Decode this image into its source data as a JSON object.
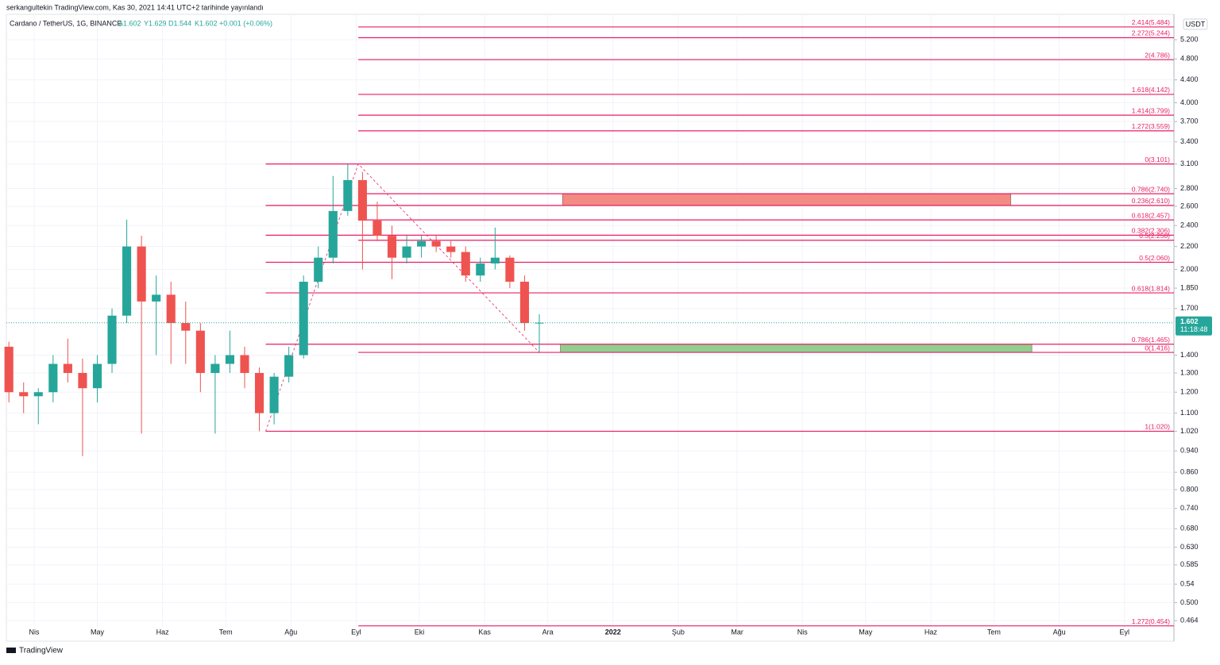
{
  "header": {
    "published": "serkangultekin TradingView.com, Kas 30, 2021 14:41 UTC+2 tarihinde yayınlandı",
    "symbol": "Cardano / TetherUS, 1G, BINANCE",
    "open": "A1.602",
    "high": "Y1.629",
    "low": "D1.544",
    "close": "K1.602",
    "change": "+0.001 (+0.06%)"
  },
  "footer": {
    "brand": "TradingView"
  },
  "chart_data": {
    "type": "candlestick",
    "log_scale": true,
    "currency": "USDT",
    "up_color": "#26a69a",
    "down_color": "#ef5350",
    "level_color": "#e91e63",
    "xlim": [
      -13.2,
      541.5
    ],
    "ylim": [
      0.452,
      5.78
    ],
    "xticks": [
      {
        "value": 0,
        "label": "Nis"
      },
      {
        "value": 30,
        "label": "May"
      },
      {
        "value": 61,
        "label": "Haz"
      },
      {
        "value": 91,
        "label": "Tem"
      },
      {
        "value": 122,
        "label": "Ağu"
      },
      {
        "value": 153,
        "label": "Eyl"
      },
      {
        "value": 183,
        "label": "Eki"
      },
      {
        "value": 214,
        "label": "Kas"
      },
      {
        "value": 244,
        "label": "Ara"
      },
      {
        "value": 275,
        "label": "2022"
      },
      {
        "value": 306,
        "label": "Şub"
      },
      {
        "value": 334,
        "label": "Mar"
      },
      {
        "value": 365,
        "label": "Nis"
      },
      {
        "value": 395,
        "label": "May"
      },
      {
        "value": 426,
        "label": "Haz"
      },
      {
        "value": 456,
        "label": "Tem"
      },
      {
        "value": 487,
        "label": "Ağu"
      },
      {
        "value": 518,
        "label": "Eyl"
      }
    ],
    "yticks": [
      {
        "value": 5.2,
        "label": "5.200"
      },
      {
        "value": 4.8,
        "label": "4.800"
      },
      {
        "value": 4.4,
        "label": "4.400"
      },
      {
        "value": 4.0,
        "label": "4.000"
      },
      {
        "value": 3.7,
        "label": "3.700"
      },
      {
        "value": 3.4,
        "label": "3.400"
      },
      {
        "value": 3.1,
        "label": "3.100"
      },
      {
        "value": 2.8,
        "label": "2.800"
      },
      {
        "value": 2.6,
        "label": "2.600"
      },
      {
        "value": 2.4,
        "label": "2.400"
      },
      {
        "value": 2.2,
        "label": "2.200"
      },
      {
        "value": 2.0,
        "label": "2.000"
      },
      {
        "value": 1.85,
        "label": "1.850"
      },
      {
        "value": 1.7,
        "label": "1.700"
      },
      {
        "value": 1.4,
        "label": "1.400"
      },
      {
        "value": 1.3,
        "label": "1.300"
      },
      {
        "value": 1.2,
        "label": "1.200"
      },
      {
        "value": 1.1,
        "label": "1.100"
      },
      {
        "value": 1.02,
        "label": "1.020"
      },
      {
        "value": 0.94,
        "label": "0.940"
      },
      {
        "value": 0.86,
        "label": "0.860"
      },
      {
        "value": 0.8,
        "label": "0.800"
      },
      {
        "value": 0.74,
        "label": "0.740"
      },
      {
        "value": 0.68,
        "label": "0.680"
      },
      {
        "value": 0.63,
        "label": "0.630"
      },
      0.585,
      0.54,
      {
        "value": 0.5,
        "label": "0.500"
      },
      0.464
    ],
    "last_price": 1.602,
    "countdown": "11:18:48",
    "candles": [
      {
        "x": -12,
        "open": 1.45,
        "high": 1.48,
        "low": 1.15,
        "close": 1.2
      },
      {
        "x": -5,
        "open": 1.2,
        "high": 1.25,
        "low": 1.1,
        "close": 1.18
      },
      {
        "x": 2,
        "open": 1.18,
        "high": 1.22,
        "low": 1.05,
        "close": 1.2
      },
      {
        "x": 9,
        "open": 1.2,
        "high": 1.4,
        "low": 1.15,
        "close": 1.35
      },
      {
        "x": 16,
        "open": 1.35,
        "high": 1.5,
        "low": 1.25,
        "close": 1.3
      },
      {
        "x": 23,
        "open": 1.3,
        "high": 1.38,
        "low": 0.92,
        "close": 1.22
      },
      {
        "x": 30,
        "open": 1.22,
        "high": 1.4,
        "low": 1.15,
        "close": 1.35
      },
      {
        "x": 37,
        "open": 1.35,
        "high": 1.7,
        "low": 1.3,
        "close": 1.65
      },
      {
        "x": 44,
        "open": 1.65,
        "high": 2.46,
        "low": 1.6,
        "close": 2.2
      },
      {
        "x": 51,
        "open": 2.2,
        "high": 2.3,
        "low": 1.01,
        "close": 1.75
      },
      {
        "x": 58,
        "open": 1.75,
        "high": 1.95,
        "low": 1.4,
        "close": 1.8
      },
      {
        "x": 65,
        "open": 1.8,
        "high": 1.9,
        "low": 1.35,
        "close": 1.6
      },
      {
        "x": 72,
        "open": 1.6,
        "high": 1.75,
        "low": 1.35,
        "close": 1.55
      },
      {
        "x": 79,
        "open": 1.55,
        "high": 1.6,
        "low": 1.2,
        "close": 1.3
      },
      {
        "x": 86,
        "open": 1.3,
        "high": 1.4,
        "low": 1.01,
        "close": 1.35
      },
      {
        "x": 93,
        "open": 1.35,
        "high": 1.55,
        "low": 1.3,
        "close": 1.4
      },
      {
        "x": 100,
        "open": 1.4,
        "high": 1.45,
        "low": 1.22,
        "close": 1.3
      },
      {
        "x": 107,
        "open": 1.3,
        "high": 1.33,
        "low": 1.02,
        "close": 1.1
      },
      {
        "x": 114,
        "open": 1.1,
        "high": 1.3,
        "low": 1.05,
        "close": 1.28
      },
      {
        "x": 121,
        "open": 1.28,
        "high": 1.45,
        "low": 1.25,
        "close": 1.4
      },
      {
        "x": 128,
        "open": 1.4,
        "high": 1.95,
        "low": 1.38,
        "close": 1.9
      },
      {
        "x": 135,
        "open": 1.9,
        "high": 2.2,
        "low": 1.85,
        "close": 2.1
      },
      {
        "x": 142,
        "open": 2.1,
        "high": 2.95,
        "low": 2.05,
        "close": 2.55
      },
      {
        "x": 149,
        "open": 2.55,
        "high": 3.1,
        "low": 2.5,
        "close": 2.9
      },
      {
        "x": 156,
        "open": 2.9,
        "high": 3.0,
        "low": 2.0,
        "close": 2.45
      },
      {
        "x": 163,
        "open": 2.45,
        "high": 2.65,
        "low": 2.25,
        "close": 2.3
      },
      {
        "x": 170,
        "open": 2.3,
        "high": 2.4,
        "low": 1.92,
        "close": 2.1
      },
      {
        "x": 177,
        "open": 2.1,
        "high": 2.3,
        "low": 2.05,
        "close": 2.2
      },
      {
        "x": 184,
        "open": 2.2,
        "high": 2.3,
        "low": 2.1,
        "close": 2.25
      },
      {
        "x": 191,
        "open": 2.25,
        "high": 2.3,
        "low": 2.15,
        "close": 2.2
      },
      {
        "x": 198,
        "open": 2.2,
        "high": 2.25,
        "low": 2.1,
        "close": 2.15
      },
      {
        "x": 205,
        "open": 2.15,
        "high": 2.2,
        "low": 1.9,
        "close": 1.95
      },
      {
        "x": 212,
        "open": 1.95,
        "high": 2.1,
        "low": 1.9,
        "close": 2.05
      },
      {
        "x": 219,
        "open": 2.05,
        "high": 2.38,
        "low": 2.0,
        "close": 2.1
      },
      {
        "x": 226,
        "open": 2.1,
        "high": 2.12,
        "low": 1.85,
        "close": 1.9
      },
      {
        "x": 233,
        "open": 1.9,
        "high": 1.95,
        "low": 1.55,
        "close": 1.6
      },
      {
        "x": 240,
        "open": 1.6,
        "high": 1.66,
        "low": 1.42,
        "close": 1.602
      }
    ],
    "levels": [
      {
        "start": 154,
        "value": 5.484,
        "label": "2.414(5.484)"
      },
      {
        "start": 154,
        "value": 5.244,
        "label": "2.272(5.244)"
      },
      {
        "start": 154,
        "value": 4.786,
        "label": "2(4.786)"
      },
      {
        "start": 154,
        "value": 4.142,
        "label": "1.618(4.142)"
      },
      {
        "start": 154,
        "value": 3.799,
        "label": "1.414(3.799)"
      },
      {
        "start": 154,
        "value": 3.559,
        "label": "1.272(3.559)"
      },
      {
        "start": 110,
        "value": 3.101,
        "label": "0(3.101)"
      },
      {
        "start": 154,
        "value": 2.74,
        "label": "0.786(2.740)"
      },
      {
        "start": 110,
        "value": 2.61,
        "label": "0.236(2.610)"
      },
      {
        "start": 154,
        "value": 2.457,
        "label": "0.618(2.457)"
      },
      {
        "start": 110,
        "value": 2.306,
        "label": "0.382(2.306)"
      },
      {
        "start": 154,
        "value": 2.258,
        "label": "0.5(2.258)"
      },
      {
        "start": 110,
        "value": 2.06,
        "label": "0.5(2.060)"
      },
      {
        "start": 110,
        "value": 1.814,
        "label": "0.618(1.814)"
      },
      {
        "start": 110,
        "value": 1.465,
        "label": "0.786(1.465)"
      },
      {
        "start": 154,
        "value": 1.416,
        "label": "0(1.416)"
      },
      {
        "start": 110,
        "value": 1.02,
        "label": "1(1.020)"
      },
      {
        "start": 154,
        "value": 0.454,
        "label": "1.272(0.454)"
      }
    ],
    "zones": [
      {
        "start": 251,
        "end": 464,
        "low": 2.61,
        "high": 2.74,
        "color": "#f28b82"
      },
      {
        "start": 250,
        "end": 474,
        "low": 1.416,
        "high": 1.465,
        "color": "#8fcf8f"
      }
    ],
    "zigzag": {
      "x": [
        110,
        154,
        240
      ],
      "y": [
        1.02,
        3.101,
        1.416
      ]
    }
  }
}
